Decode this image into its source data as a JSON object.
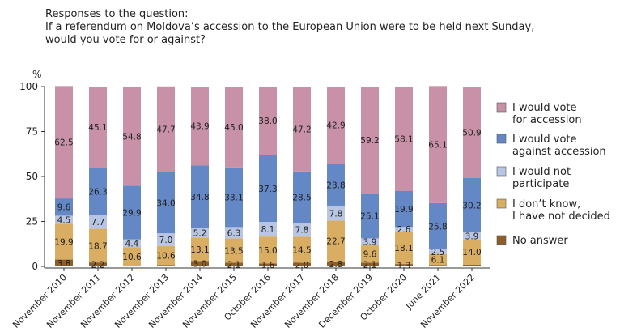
{
  "title": {
    "line1": "Responses to the question:",
    "line2": "If a referendum on Moldova’s accession to the European Union were to be held next Sunday,",
    "line3": "would you vote for or against?"
  },
  "chart_data": {
    "type": "bar",
    "stacked": true,
    "ylabel": "%",
    "ylim": [
      0,
      100
    ],
    "yticks": [
      0,
      25,
      50,
      75,
      100
    ],
    "grid": false,
    "legend_position": "right",
    "categories": [
      "November 2010",
      "November 2011",
      "November 2012",
      "November 2013",
      "November 2014",
      "November 2015",
      "October 2016",
      "November 2017",
      "November 2018",
      "December 2019",
      "October 2020",
      "June 2021",
      "November 2022"
    ],
    "series": [
      {
        "name": "No answer",
        "legend_lines": [
          "No answer"
        ],
        "color": "#8b5e2b",
        "values": [
          3.8,
          2.2,
          0.0,
          0.8,
          3.0,
          2.1,
          1.6,
          2.0,
          2.8,
          2.1,
          1.3,
          0.8,
          1.0
        ],
        "labels": [
          "3.8",
          "2.2",
          "",
          "",
          "3.0",
          "2.1",
          "1.6",
          "2.0",
          "2.8",
          "2.1",
          "1.3",
          "",
          ""
        ]
      },
      {
        "name": "I don’t know, I have not decided",
        "legend_lines": [
          "I don’t know,",
          "I have not decided"
        ],
        "color": "#d9ae63",
        "values": [
          19.9,
          18.7,
          10.6,
          10.6,
          13.1,
          13.5,
          15.0,
          14.5,
          22.7,
          9.6,
          18.1,
          6.1,
          14.0
        ],
        "labels": [
          "19.9",
          "18.7",
          "10.6",
          "10.6",
          "13.1",
          "13.5",
          "15.0",
          "14.5",
          "22.7",
          "9.6",
          "18.1",
          "6.1",
          "14.0"
        ]
      },
      {
        "name": "I would not participate",
        "legend_lines": [
          "I would not",
          "participate"
        ],
        "color": "#b9c6e3",
        "values": [
          4.5,
          7.7,
          4.4,
          7.0,
          5.2,
          6.3,
          8.1,
          7.8,
          7.8,
          3.9,
          2.6,
          2.5,
          3.9
        ],
        "labels": [
          "4.5",
          "7.7",
          "4.4",
          "7.0",
          "5.2",
          "6.3",
          "8.1",
          "7.8",
          "7.8",
          "3.9",
          "2.6",
          "2.5",
          "3.9"
        ]
      },
      {
        "name": "I would vote against accession",
        "legend_lines": [
          "I would vote",
          "against accession"
        ],
        "color": "#6488c6",
        "values": [
          9.6,
          26.3,
          29.9,
          34.0,
          34.8,
          33.1,
          37.3,
          28.5,
          23.8,
          25.1,
          19.9,
          25.8,
          30.2
        ],
        "labels": [
          "9.6",
          "26.3",
          "29.9",
          "34.0",
          "34.8",
          "33.1",
          "37.3",
          "28.5",
          "23.8",
          "25.1",
          "19.9",
          "25.8",
          "30.2"
        ]
      },
      {
        "name": "I would vote for accession",
        "legend_lines": [
          "I would vote",
          "for accession"
        ],
        "color": "#c891a7",
        "values": [
          62.5,
          45.1,
          54.8,
          47.7,
          43.9,
          45.0,
          38.0,
          47.2,
          42.9,
          59.2,
          58.1,
          65.1,
          50.9
        ],
        "labels": [
          "62.5",
          "45.1",
          "54.8",
          "47.7",
          "43.9",
          "45.0",
          "38.0",
          "47.2",
          "42.9",
          "59.2",
          "58.1",
          "65.1",
          "50.9"
        ]
      }
    ],
    "extra_labels": {
      "June 2021": "1.0"
    }
  }
}
